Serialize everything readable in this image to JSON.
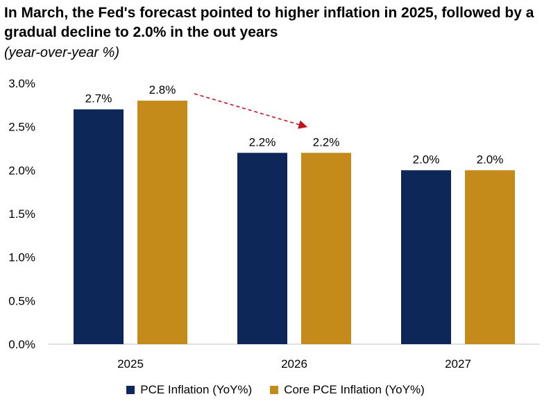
{
  "title": "In March, the Fed's forecast pointed to higher inflation in 2025, followed by a gradual decline to 2.0% in the out years",
  "subtitle": "(year-over-year %)",
  "chart_data": {
    "type": "bar",
    "categories": [
      "2025",
      "2026",
      "2027"
    ],
    "series": [
      {
        "name": "PCE Inflation (YoY%)",
        "values": [
          2.7,
          2.2,
          2.0
        ],
        "labels": [
          "2.7%",
          "2.2%",
          "2.0%"
        ],
        "color": "#0d2759"
      },
      {
        "name": "Core PCE Inflation (YoY%)",
        "values": [
          2.8,
          2.2,
          2.0
        ],
        "labels": [
          "2.8%",
          "2.2%",
          "2.0%"
        ],
        "color": "#c48a1a"
      }
    ],
    "ylim": [
      0,
      3.0
    ],
    "yticks": [
      0,
      0.5,
      1.0,
      1.5,
      2.0,
      2.5,
      3.0
    ],
    "ytick_labels": [
      "0.0%",
      "0.5%",
      "1.0%",
      "1.5%",
      "2.0%",
      "2.5%",
      "3.0%"
    ],
    "grid": false,
    "legend_position": "bottom",
    "annotation": {
      "type": "dashed-arrow",
      "from": "2025 Core PCE",
      "to": "2026 Core PCE",
      "color": "#c0141c"
    }
  }
}
